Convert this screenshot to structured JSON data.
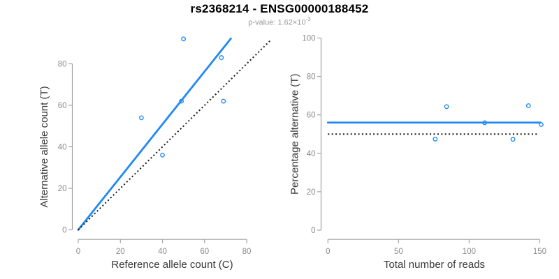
{
  "title": "rs2368214 - ENSG00000188452",
  "subtitle": {
    "prefix": "p-value: ",
    "coefficient": "1.62",
    "times_base": "×10",
    "exponent": "-3"
  },
  "colors": {
    "accent_blue": "#2189f2",
    "reference_black": "#1a1a1a",
    "axis_gray": "#a3a3a3",
    "tick_label_gray": "#8a8a8a",
    "axis_title_gray": "#383838",
    "subtitle_gray": "#9a9a9a",
    "background": "#ffffff"
  },
  "chart_data": [
    {
      "type": "scatter",
      "panel": "left",
      "xlabel": "Reference allele count (C)",
      "ylabel": "Alternative allele count (T)",
      "xticks": [
        0,
        20,
        40,
        60,
        80
      ],
      "yticks": [
        0,
        20,
        40,
        60,
        80
      ],
      "xlim": [
        0,
        92
      ],
      "ylim": [
        0,
        92.5
      ],
      "grid": false,
      "legend": "none",
      "points": [
        [
          30,
          54
        ],
        [
          40,
          36
        ],
        [
          49,
          62
        ],
        [
          50,
          92
        ],
        [
          68,
          83
        ],
        [
          69,
          62
        ]
      ],
      "lines": [
        {
          "name": "fit-line",
          "style": "solid",
          "color_key": "accent_blue",
          "x1": 0,
          "y1": 0,
          "x2": 72.5,
          "y2": 92.2
        },
        {
          "name": "identity-line",
          "style": "dotted",
          "color_key": "reference_black",
          "x1": 0,
          "y1": 0,
          "x2": 91.7,
          "y2": 91.7
        }
      ]
    },
    {
      "type": "scatter",
      "panel": "right",
      "xlabel": "Total number of reads",
      "ylabel": "Percentage alternative (T)",
      "xticks": [
        0,
        50,
        100,
        150
      ],
      "yticks": [
        0,
        20,
        40,
        60,
        80,
        100
      ],
      "xlim": [
        0,
        155
      ],
      "ylim": [
        0,
        100
      ],
      "grid": false,
      "legend": "none",
      "points": [
        [
          76,
          47.4
        ],
        [
          84,
          64.3
        ],
        [
          111,
          55.9
        ],
        [
          131,
          47.3
        ],
        [
          142,
          64.8
        ],
        [
          151,
          55.0
        ]
      ],
      "lines": [
        {
          "name": "fit-line",
          "style": "solid",
          "color_key": "accent_blue",
          "x1": 0,
          "y1": 56,
          "x2": 150.5,
          "y2": 56
        },
        {
          "name": "reference-line",
          "style": "dotted",
          "color_key": "reference_black",
          "x1": 0,
          "y1": 50,
          "x2": 148,
          "y2": 50
        }
      ]
    }
  ]
}
